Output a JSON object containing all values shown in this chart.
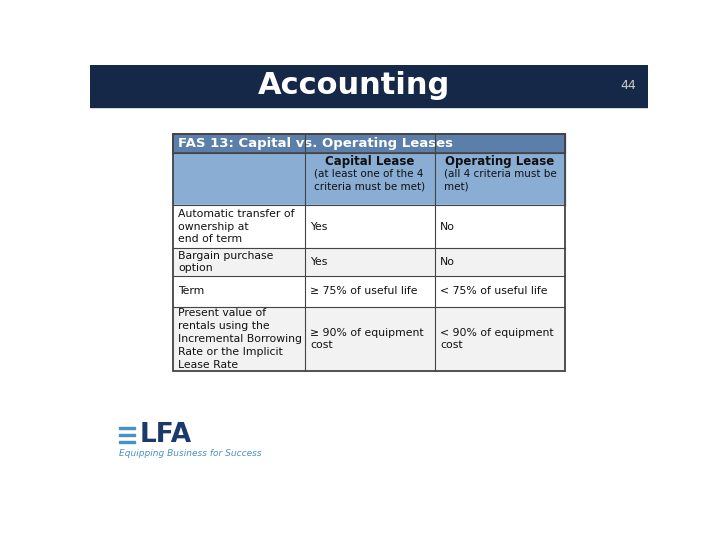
{
  "title": "Accounting",
  "slide_number": "44",
  "bg_color": "#ffffff",
  "header_bg": "#162847",
  "title_color": "#ffffff",
  "table_title": "FAS 13: Capital vs. Operating Leases",
  "table_title_bg": "#5b7faa",
  "table_title_color": "#ffffff",
  "col_header_bg": "#8aadd4",
  "row_bg_white": "#ffffff",
  "row_bg_gray": "#f2f2f2",
  "border_color": "#444444",
  "columns": [
    "",
    "Capital Lease",
    "Operating Lease"
  ],
  "col_sub1": "(at least one of the 4\ncriteria must be met)",
  "col_sub2": "(all 4 criteria must be\nmet)",
  "rows": [
    [
      "Automatic transfer of\nownership at\nend of term",
      "Yes",
      "No"
    ],
    [
      "Bargain purchase\noption",
      "Yes",
      "No"
    ],
    [
      "Term",
      "≥ 75% of useful life",
      "< 75% of useful life"
    ],
    [
      "Present value of\nrentals using the\nIncremental Borrowing\nRate or the Implicit\nLease Rate",
      "≥ 90% of equipment\ncost",
      "< 90% of equipment\ncost"
    ]
  ],
  "elfa_subtitle": "Equipping Business for Success",
  "elfa_color": "#1a3a6b",
  "elfa_bar_color": "#4a90c4"
}
